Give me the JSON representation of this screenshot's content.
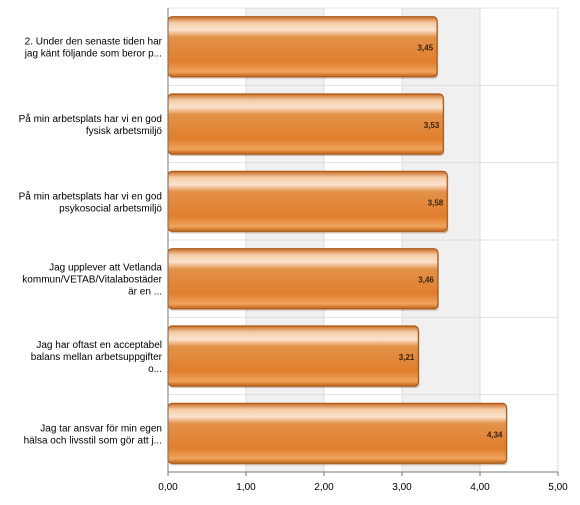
{
  "chart_data": {
    "type": "bar",
    "orientation": "horizontal",
    "categories": [
      [
        "2. Under den senaste tiden har",
        "jag känt följande som beror p..."
      ],
      [
        "På min arbetsplats har vi en god",
        "fysisk arbetsmiljö"
      ],
      [
        "På min arbetsplats har vi en god",
        "psykosocial arbetsmiljö"
      ],
      [
        "Jag upplever att Vetlanda",
        "kommun/VETAB/Vitalabostäder",
        "är en ..."
      ],
      [
        "Jag har oftast en acceptabel",
        "balans mellan arbetsuppgifter",
        "o..."
      ],
      [
        "Jag tar ansvar för min egen",
        "hälsa och livsstil som gör att j..."
      ]
    ],
    "values": [
      3.45,
      3.53,
      3.58,
      3.46,
      3.21,
      4.34
    ],
    "value_labels": [
      "3,45",
      "3,53",
      "3,58",
      "3,46",
      "3,21",
      "4,34"
    ],
    "xlim": [
      0,
      5
    ],
    "xticks": [
      "0,00",
      "1,00",
      "2,00",
      "3,00",
      "4,00",
      "5,00"
    ],
    "grid": true,
    "legend": "none",
    "bar_color": "#e8893b",
    "band_color": "#f0f0f0"
  }
}
